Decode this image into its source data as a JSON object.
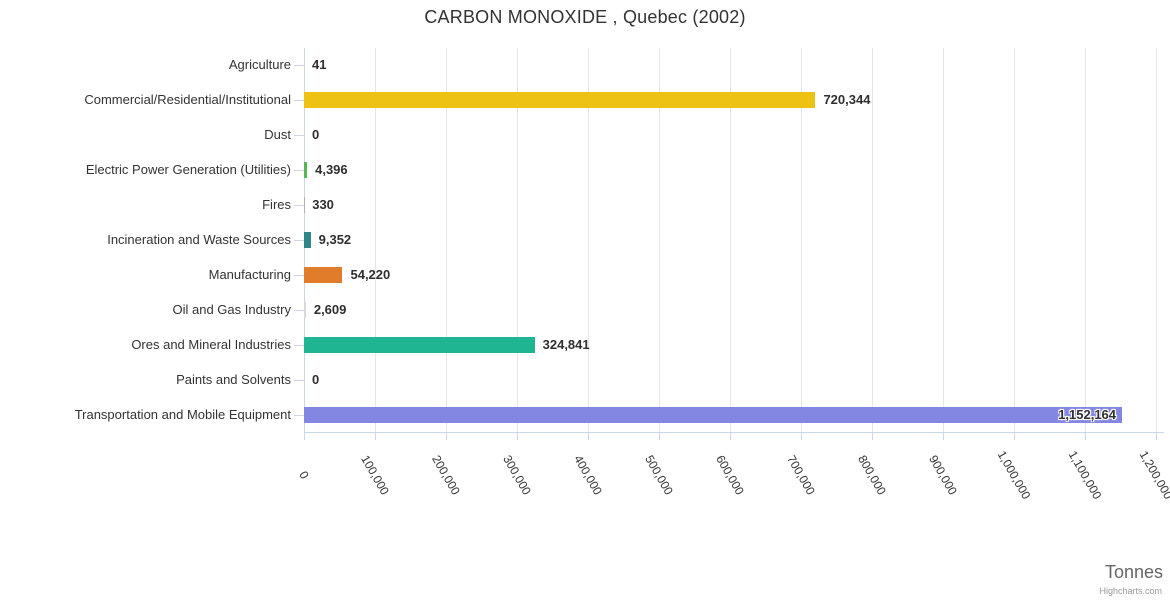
{
  "title": "CARBON MONOXIDE , Quebec (2002)",
  "credits": "Highcharts.com",
  "chart_data": {
    "type": "bar",
    "orientation": "horizontal",
    "title": "CARBON MONOXIDE , Quebec (2002)",
    "categories": [
      "Agriculture",
      "Commercial/Residential/Institutional",
      "Dust",
      "Electric Power Generation (Utilities)",
      "Fires",
      "Incineration and Waste Sources",
      "Manufacturing",
      "Oil and Gas Industry",
      "Ores and Mineral Industries",
      "Paints and Solvents",
      "Transportation and Mobile Equipment"
    ],
    "values": [
      41,
      720344,
      0,
      4396,
      330,
      9352,
      54220,
      2609,
      324841,
      0,
      1152164
    ],
    "value_labels": [
      "41",
      "720,344",
      "0",
      "4,396",
      "330",
      "9,352",
      "54,220",
      "2,609",
      "324,841",
      "0",
      "1,152,164"
    ],
    "bar_colors": [
      "#b0b0b0",
      "#edc213",
      "#b0b0b0",
      "#53b853",
      "#b0b0b0",
      "#2d8789",
      "#e17c2b",
      "#d9d9d9",
      "#1fb492",
      "#b0b0b0",
      "#8487e1"
    ],
    "xlabel": "Tonnes",
    "ylabel": "",
    "xlim": [
      0,
      1200000
    ],
    "x_tick_values": [
      0,
      100000,
      200000,
      300000,
      400000,
      500000,
      600000,
      700000,
      800000,
      900000,
      1000000,
      1100000,
      1200000
    ],
    "x_tick_labels": [
      "0",
      "100,000",
      "200,000",
      "300,000",
      "400,000",
      "500,000",
      "600,000",
      "700,000",
      "800,000",
      "900,000",
      "1,000,000",
      "1,100,000",
      "1,200,000"
    ],
    "grid": true,
    "legend": false,
    "styles": {
      "grid_color": "#e6e6e6",
      "axis_color": "#ccd6eb",
      "label_color": "#333333",
      "value_label_color": "#2f2f2f",
      "title_color": "#333333",
      "axis_title_color": "#666666",
      "credits_color": "#999999"
    }
  }
}
